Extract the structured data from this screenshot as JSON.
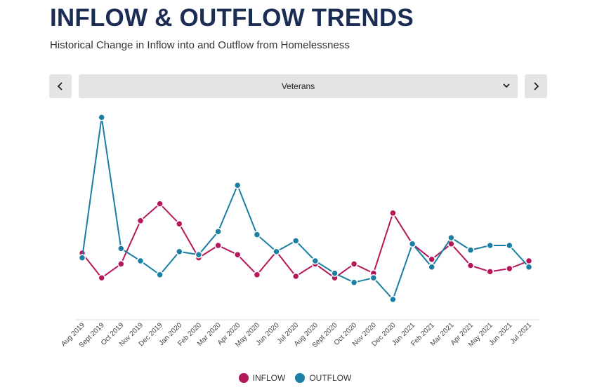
{
  "header": {
    "title": "INFLOW & OUTFLOW TRENDS",
    "subtitle": "Historical Change in Inflow into and Outflow from Homelessness"
  },
  "selector": {
    "selected": "Veterans",
    "prev_icon": "chevron-left-icon",
    "next_icon": "chevron-right-icon",
    "dropdown_icon": "chevron-down-icon"
  },
  "colors": {
    "inflow": "#b5175b",
    "outflow": "#1b7ea3"
  },
  "chart_data": {
    "type": "line",
    "title": "",
    "xlabel": "",
    "ylabel": "",
    "ylim": [
      0,
      100
    ],
    "grid": false,
    "categories": [
      "Aug 2019",
      "Sept 2019",
      "Oct 2019",
      "Nov 2019",
      "Dec 2019",
      "Jan 2020",
      "Feb 2020",
      "Mar 2020",
      "Apr 2020",
      "May 2020",
      "Jun 2020",
      "Jul 2020",
      "Aug 2020",
      "Sept 2020",
      "Oct 2020",
      "Nov 2020",
      "Dec 2020",
      "Jan 2021",
      "Feb 2021",
      "Mar 2021",
      "Apr 2021",
      "May 2021",
      "Jun 2021",
      "Jul 2021"
    ],
    "series": [
      {
        "name": "INFLOW",
        "values": [
          30,
          14,
          23,
          51,
          62,
          49,
          27,
          35,
          29,
          16,
          31,
          15,
          23,
          14,
          23,
          17,
          56,
          36,
          26,
          36,
          22,
          18,
          20,
          25
        ]
      },
      {
        "name": "OUTFLOW",
        "values": [
          27,
          118,
          33,
          25,
          16,
          31,
          29,
          44,
          74,
          42,
          31,
          38,
          25,
          17,
          11,
          14,
          0,
          36,
          21,
          40,
          32,
          35,
          35,
          21
        ]
      }
    ],
    "legend": [
      "INFLOW",
      "OUTFLOW"
    ]
  }
}
